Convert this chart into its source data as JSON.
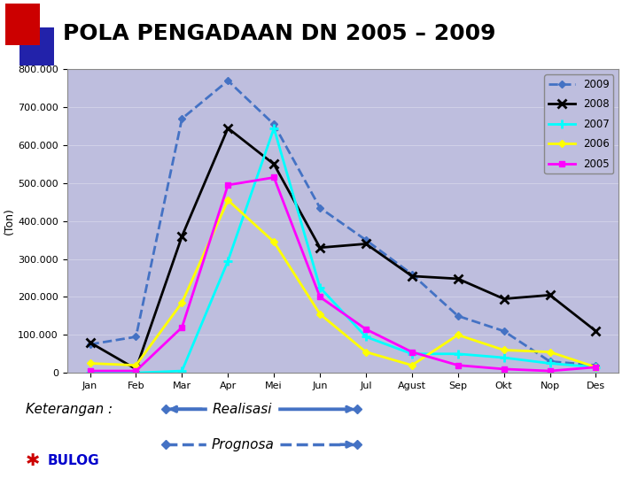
{
  "title": "POLA PENGADAAN DN 2005 – 2009",
  "ylabel": "(Ton)",
  "months": [
    "Jan",
    "Feb",
    "Mar",
    "Apr",
    "Mei",
    "Jun",
    "Jul",
    "Agust",
    "Sep",
    "Okt",
    "Nop",
    "Des"
  ],
  "ylim": [
    0,
    800000
  ],
  "yticks": [
    0,
    100000,
    200000,
    300000,
    400000,
    500000,
    600000,
    700000,
    800000
  ],
  "ytick_labels": [
    "0",
    "100.000",
    "200.000",
    "300.000",
    "400.000",
    "500.000",
    "600.000",
    "700.000",
    "800.000"
  ],
  "series": {
    "2009": {
      "values": [
        75000,
        95000,
        670000,
        770000,
        655000,
        435000,
        350000,
        260000,
        150000,
        110000,
        30000,
        20000
      ],
      "color": "#4472C4",
      "marker": "D",
      "linestyle": "--",
      "linewidth": 2.0
    },
    "2008": {
      "values": [
        80000,
        10000,
        360000,
        645000,
        550000,
        330000,
        340000,
        255000,
        248000,
        195000,
        205000,
        110000
      ],
      "color": "#000000",
      "marker": "x",
      "linestyle": "-",
      "linewidth": 2.0
    },
    "2007": {
      "values": [
        0,
        0,
        5000,
        295000,
        645000,
        225000,
        95000,
        50000,
        50000,
        40000,
        25000,
        15000
      ],
      "color": "#00FFFF",
      "marker": "+",
      "linestyle": "-",
      "linewidth": 2.0
    },
    "2006": {
      "values": [
        25000,
        20000,
        185000,
        455000,
        345000,
        155000,
        55000,
        20000,
        100000,
        60000,
        55000,
        15000
      ],
      "color": "#FFFF00",
      "marker": "D",
      "linestyle": "-",
      "linewidth": 2.0
    },
    "2005": {
      "values": [
        5000,
        5000,
        120000,
        495000,
        515000,
        200000,
        115000,
        55000,
        20000,
        10000,
        5000,
        15000
      ],
      "color": "#FF00FF",
      "marker": "s",
      "linestyle": "-",
      "linewidth": 2.0
    }
  },
  "plot_bg_color": "#BEBEDE",
  "outer_bg_color": "#FFFFFF",
  "legend_bg_color": "#BEBEDE",
  "realisasi_color": "#4472C4",
  "prognosa_color": "#4472C4",
  "title_color": "#000000",
  "keterangan_text": "Keterangan :",
  "realisasi_text": "Realisasi",
  "prognosa_text": "Prognosa",
  "bulog_color": "#0000CC"
}
